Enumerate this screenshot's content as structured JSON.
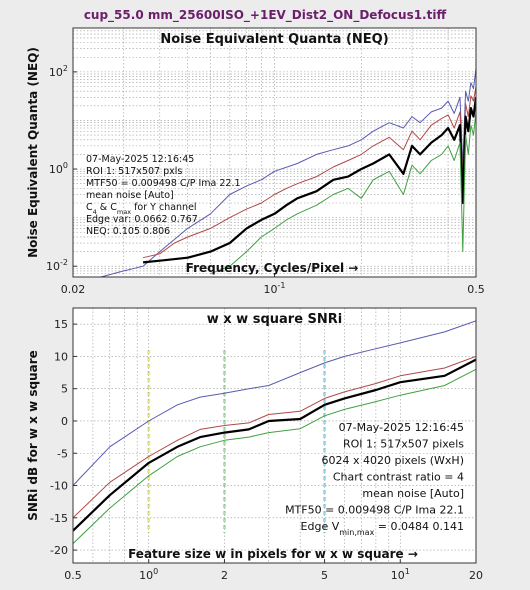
{
  "window_title": "cup_55.0 mm_25600ISO_+1EV_Dist2_ON_Defocus1.tiff",
  "chart_data": [
    {
      "type": "line",
      "title": "Noise Equivalent Quanta (NEQ)",
      "xlabel": "Frequency, Cycles/Pixel →",
      "ylabel": "Noise Equivalent Quanta (NEQ)",
      "x_scale": "log",
      "y_scale": "log",
      "xlim": [
        0.02,
        0.5
      ],
      "ylim": [
        0.006,
        800
      ],
      "x_ticks": [
        {
          "value": 0.02,
          "label": "0.02"
        },
        {
          "value": 0.1,
          "label": "10",
          "exp": "-1"
        },
        {
          "value": 0.5,
          "label": "0.5"
        }
      ],
      "y_ticks": [
        {
          "value": 0.01,
          "label": "10",
          "exp": "-2"
        },
        {
          "value": 1,
          "label": "10",
          "exp": "0"
        },
        {
          "value": 100,
          "label": "10",
          "exp": "2"
        }
      ],
      "grid": true,
      "series": [
        {
          "color": "#5a5ab0",
          "width": 1,
          "x": [
            0.02,
            0.025,
            0.03,
            0.035,
            0.04,
            0.05,
            0.06,
            0.07,
            0.08,
            0.09,
            0.1,
            0.12,
            0.14,
            0.16,
            0.18,
            0.2,
            0.22,
            0.25,
            0.28,
            0.3,
            0.32,
            0.35,
            0.38,
            0.4,
            0.42,
            0.44,
            0.45,
            0.46,
            0.47,
            0.48,
            0.49,
            0.5
          ],
          "y": [
            0.005,
            0.006,
            0.008,
            0.01,
            0.02,
            0.06,
            0.12,
            0.3,
            0.45,
            0.6,
            0.9,
            1.3,
            2,
            2.5,
            3,
            4,
            6,
            9,
            7,
            12,
            9,
            15,
            18,
            25,
            14,
            30,
            1.2,
            40,
            25,
            60,
            45,
            120
          ]
        },
        {
          "color": "#b04848",
          "width": 1,
          "x": [
            0.035,
            0.04,
            0.045,
            0.05,
            0.06,
            0.07,
            0.08,
            0.09,
            0.1,
            0.11,
            0.12,
            0.14,
            0.16,
            0.18,
            0.2,
            0.22,
            0.25,
            0.28,
            0.3,
            0.32,
            0.35,
            0.38,
            0.4,
            0.42,
            0.44,
            0.45,
            0.46,
            0.47,
            0.48,
            0.49,
            0.5
          ],
          "y": [
            0.015,
            0.018,
            0.03,
            0.04,
            0.06,
            0.1,
            0.15,
            0.2,
            0.3,
            0.4,
            0.5,
            0.7,
            1.1,
            1.5,
            2,
            3,
            4.5,
            2.5,
            6,
            4,
            8,
            11,
            13,
            7,
            15,
            0.8,
            22,
            12,
            32,
            25,
            50
          ]
        },
        {
          "color": "#000000",
          "width": 2.2,
          "x": [
            0.035,
            0.04,
            0.05,
            0.06,
            0.07,
            0.08,
            0.09,
            0.1,
            0.11,
            0.12,
            0.14,
            0.16,
            0.18,
            0.2,
            0.22,
            0.25,
            0.28,
            0.3,
            0.32,
            0.35,
            0.38,
            0.4,
            0.42,
            0.44,
            0.45,
            0.46,
            0.47,
            0.48,
            0.49,
            0.5
          ],
          "y": [
            0.012,
            0.013,
            0.015,
            0.02,
            0.03,
            0.06,
            0.09,
            0.12,
            0.18,
            0.25,
            0.35,
            0.6,
            0.7,
            1,
            1.3,
            2,
            0.8,
            3,
            2,
            3.5,
            5,
            7,
            4,
            8,
            0.2,
            12,
            6,
            18,
            12,
            30
          ]
        },
        {
          "color": "#40a040",
          "width": 1,
          "x": [
            0.06,
            0.07,
            0.08,
            0.09,
            0.1,
            0.11,
            0.12,
            0.14,
            0.16,
            0.18,
            0.2,
            0.22,
            0.25,
            0.28,
            0.3,
            0.32,
            0.35,
            0.38,
            0.4,
            0.42,
            0.44,
            0.45,
            0.46,
            0.47,
            0.48,
            0.49,
            0.5
          ],
          "y": [
            0.007,
            0.01,
            0.02,
            0.04,
            0.06,
            0.09,
            0.12,
            0.18,
            0.3,
            0.4,
            0.25,
            0.6,
            0.9,
            0.3,
            1.2,
            0.8,
            1.5,
            2,
            3,
            1.5,
            3.5,
            0.02,
            5,
            2,
            8,
            5,
            15
          ]
        }
      ],
      "annotations": [
        "07-May-2025 12:16:45",
        "ROI 1:  517x507 pxls",
        "MTF50 = 0.009498 C/P  Ima 22.1",
        "mean noise  [Auto]",
        "C_4 & C_max  for Y channel",
        "Edge var:  0.0662  0.767",
        "NEQ:    0.105  0.806"
      ]
    },
    {
      "type": "line",
      "title": "w x w square SNRi",
      "xlabel": "Feature size w in pixels for w x w square →",
      "ylabel": "SNRi dB for w x w square",
      "x_scale": "log",
      "xlim": [
        0.5,
        20
      ],
      "ylim": [
        -22,
        17.5
      ],
      "x_ticks": [
        {
          "value": 0.5,
          "label": "0.5"
        },
        {
          "value": 1,
          "label": "10",
          "exp": "0"
        },
        {
          "value": 2,
          "label": "2"
        },
        {
          "value": 5,
          "label": "5"
        },
        {
          "value": 10,
          "label": "10",
          "exp": "1"
        },
        {
          "value": 20,
          "label": "20"
        }
      ],
      "y_ticks": [
        -20,
        -15,
        -10,
        -5,
        0,
        5,
        10,
        15
      ],
      "grid": true,
      "highlight_x": [
        {
          "value": 1,
          "color": "#eeee70"
        },
        {
          "value": 2,
          "color": "#a8eea8"
        },
        {
          "value": 5,
          "color": "#90eaf2"
        }
      ],
      "series": [
        {
          "color": "#5a5ab0",
          "width": 1,
          "x": [
            0.5,
            0.7,
            1,
            1.3,
            1.6,
            2,
            2.5,
            3,
            4,
            5,
            6,
            8,
            10,
            15,
            20
          ],
          "y": [
            -10,
            -4,
            0,
            2.5,
            3.7,
            4.3,
            5,
            5.5,
            7.5,
            9,
            10,
            11.2,
            12.1,
            13.8,
            15.5
          ]
        },
        {
          "color": "#b04848",
          "width": 1,
          "x": [
            0.5,
            0.7,
            1,
            1.3,
            1.6,
            2,
            2.5,
            3,
            4,
            5,
            6,
            8,
            10,
            15,
            20
          ],
          "y": [
            -15,
            -9.5,
            -5.5,
            -3,
            -1.3,
            -0.7,
            -0.3,
            1,
            1.5,
            3.5,
            4.5,
            5.8,
            7,
            8.2,
            10
          ]
        },
        {
          "color": "#000000",
          "width": 2.2,
          "x": [
            0.5,
            0.7,
            1,
            1.3,
            1.6,
            2,
            2.5,
            3,
            4,
            5,
            6,
            8,
            10,
            15,
            20
          ],
          "y": [
            -17,
            -11.5,
            -6.5,
            -4,
            -2.5,
            -1.8,
            -1.3,
            0,
            0.3,
            2.5,
            3.5,
            4.8,
            6,
            7,
            9.5
          ]
        },
        {
          "color": "#40a040",
          "width": 1,
          "x": [
            0.5,
            0.7,
            1,
            1.3,
            1.6,
            2,
            2.5,
            3,
            4,
            5,
            6,
            8,
            10,
            15,
            20
          ],
          "y": [
            -19,
            -13.5,
            -8.5,
            -5.5,
            -4,
            -3,
            -2.5,
            -1.8,
            -1.2,
            0.8,
            1.8,
            3,
            4,
            5.5,
            8
          ]
        }
      ],
      "annotations": [
        "07-May-2025 12:16:45",
        "ROI 1:  517x507 pixels",
        "6024 x 4020 pixels (WxH)",
        "Chart contrast ratio = 4",
        "mean noise  [Auto]",
        "MTF50 = 0.009498 C/P  Ima 22.1",
        "Edge V_min,max = 0.0484 0.141"
      ]
    }
  ]
}
